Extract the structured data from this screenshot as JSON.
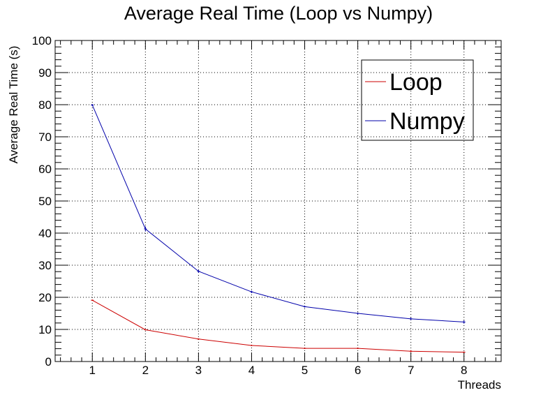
{
  "chart_data": {
    "type": "line",
    "title": "Average Real Time (Loop vs Numpy)",
    "xlabel": "Threads",
    "ylabel": "Average Real Time (s)",
    "xlim": [
      0.3,
      8.7
    ],
    "ylim": [
      0,
      100
    ],
    "x_ticks": [
      1,
      2,
      3,
      4,
      5,
      6,
      7,
      8
    ],
    "y_ticks": [
      0,
      10,
      20,
      30,
      40,
      50,
      60,
      70,
      80,
      90,
      100
    ],
    "grid": true,
    "legend_position": "top-right",
    "x": [
      1,
      2,
      3,
      4,
      5,
      6,
      7,
      8
    ],
    "series": [
      {
        "name": "Loop",
        "color": "#cc0000",
        "values": [
          19.1,
          9.9,
          7.0,
          5.0,
          4.1,
          4.1,
          3.2,
          2.9
        ],
        "errors": [
          0.2,
          0.2,
          0.2,
          0.2,
          0.2,
          0.2,
          0.3,
          0.2
        ]
      },
      {
        "name": "Numpy",
        "color": "#0000aa",
        "values": [
          79.9,
          41.3,
          28.1,
          21.7,
          17.1,
          15.0,
          13.3,
          12.3
        ],
        "errors": [
          0.3,
          0.8,
          0.5,
          0.4,
          0.3,
          0.3,
          0.4,
          0.5
        ]
      }
    ]
  }
}
